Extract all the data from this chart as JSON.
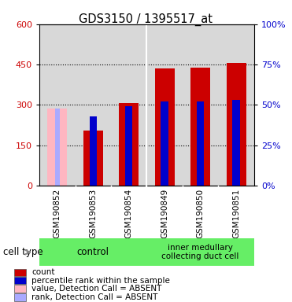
{
  "title": "GDS3150 / 1395517_at",
  "samples": [
    "GSM190852",
    "GSM190853",
    "GSM190854",
    "GSM190849",
    "GSM190850",
    "GSM190851"
  ],
  "count_values": [
    null,
    205,
    308,
    435,
    438,
    455
  ],
  "rank_values_pct": [
    null,
    43,
    49,
    52,
    52,
    53
  ],
  "absent_value": 288,
  "absent_rank_pct": 48,
  "absent_sample_idx": 0,
  "ylim_left": [
    0,
    600
  ],
  "ylim_right": [
    0,
    100
  ],
  "left_ticks": [
    0,
    150,
    300,
    450,
    600
  ],
  "right_ticks": [
    0,
    25,
    50,
    75,
    100
  ],
  "bar_color_red": "#cc0000",
  "bar_color_pink": "#ffb6c1",
  "bar_color_blue": "#0000cc",
  "bar_color_light_blue": "#aaaaff",
  "bar_width": 0.55,
  "bg_color_plot": "#d8d8d8",
  "bg_color_fig": "#ffffff",
  "green_color": "#66ee66",
  "legend_items": [
    {
      "label": "count",
      "color": "#cc0000"
    },
    {
      "label": "percentile rank within the sample",
      "color": "#0000cc"
    },
    {
      "label": "value, Detection Call = ABSENT",
      "color": "#ffb6c1"
    },
    {
      "label": "rank, Detection Call = ABSENT",
      "color": "#aaaaff"
    }
  ]
}
